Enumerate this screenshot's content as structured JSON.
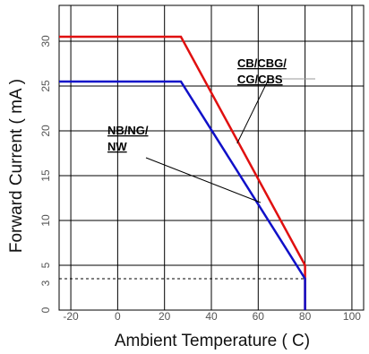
{
  "chart_data": {
    "type": "line",
    "title": "",
    "xlabel": "Ambient Temperature ( C)",
    "ylabel": "Forward Current ( mA )",
    "xlim": [
      -25,
      105
    ],
    "ylim": [
      0,
      34
    ],
    "xticks": [
      -20,
      0,
      20,
      40,
      60,
      80,
      100
    ],
    "yticks": [
      0,
      3,
      5,
      10,
      15,
      20,
      25,
      30
    ],
    "grid": true,
    "reference_line": {
      "y": 3.5,
      "x_range": [
        -25,
        80
      ],
      "style": "dashed"
    },
    "colors": {
      "cb_series": "#e01010",
      "nb_series": "#1010c8",
      "grid": "#000000",
      "reference": "#000000"
    },
    "series": [
      {
        "name": "CB/CBG/ CG/CBS",
        "x": [
          -25,
          27,
          80,
          80
        ],
        "y": [
          30.5,
          30.5,
          5,
          0
        ]
      },
      {
        "name": "NB/NG/ NW",
        "x": [
          -25,
          27,
          80,
          80
        ],
        "y": [
          25.5,
          25.5,
          3.5,
          0
        ]
      }
    ],
    "annotations": [
      {
        "text": "CB/CBG/",
        "series": 0
      },
      {
        "text": "CG/CBS",
        "series": 0
      },
      {
        "text": "NB/NG/",
        "series": 1
      },
      {
        "text": "NW",
        "series": 1
      }
    ]
  }
}
